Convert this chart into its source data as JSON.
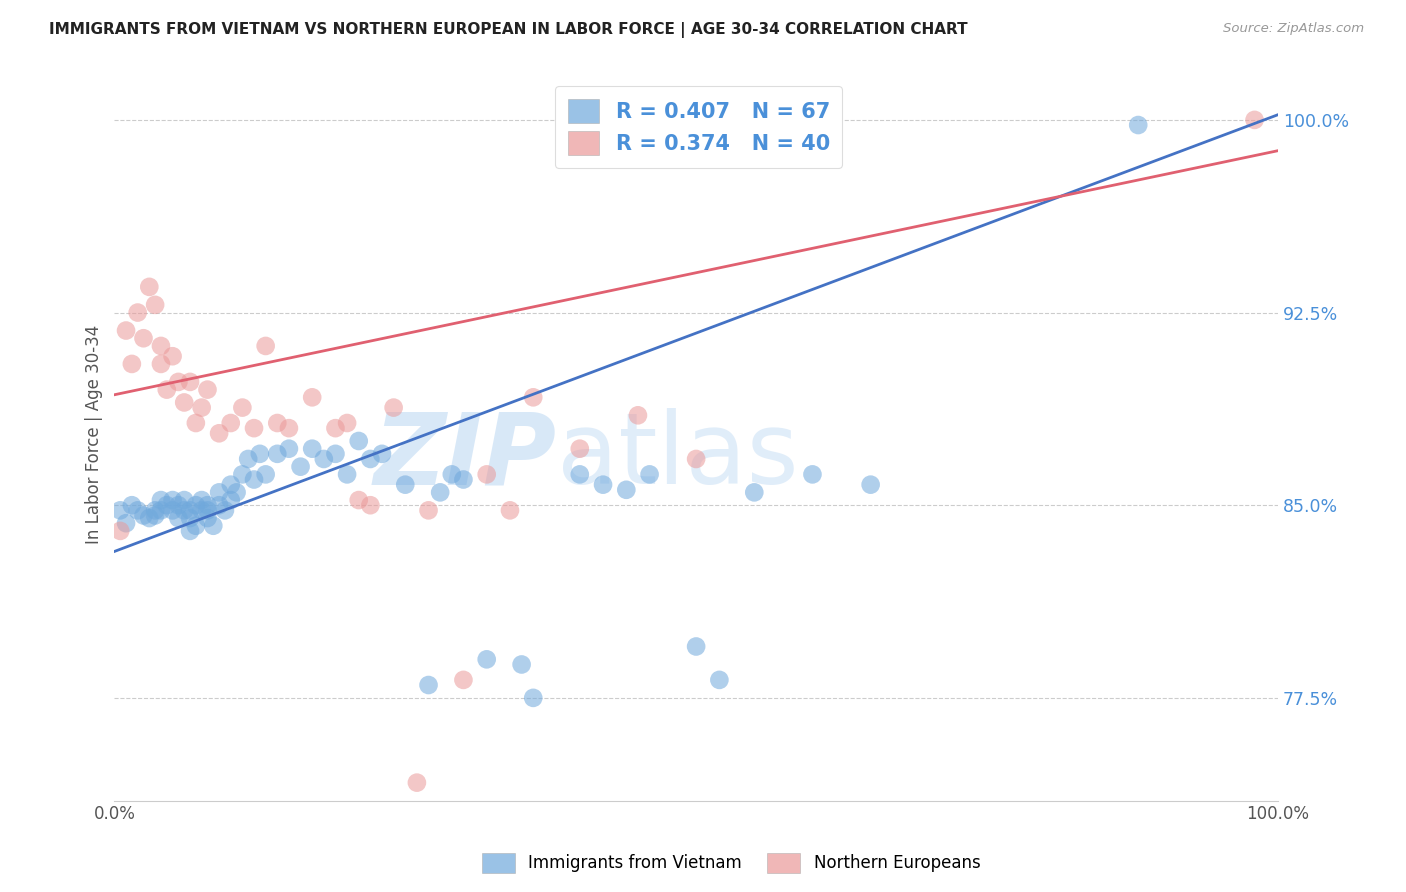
{
  "title": "IMMIGRANTS FROM VIETNAM VS NORTHERN EUROPEAN IN LABOR FORCE | AGE 30-34 CORRELATION CHART",
  "source": "Source: ZipAtlas.com",
  "ylabel": "In Labor Force | Age 30-34",
  "xlim": [
    0.0,
    1.0
  ],
  "ylim": [
    0.735,
    1.02
  ],
  "yticks": [
    0.775,
    0.85,
    0.925,
    1.0
  ],
  "ytick_labels": [
    "77.5%",
    "85.0%",
    "92.5%",
    "100.0%"
  ],
  "xtick_positions": [
    0.0,
    0.2,
    0.4,
    0.6,
    0.8,
    1.0
  ],
  "xtick_labels": [
    "0.0%",
    "",
    "",
    "",
    "",
    "100.0%"
  ],
  "blue_color": "#6fa8dc",
  "pink_color": "#ea9999",
  "blue_line_color": "#4472c4",
  "pink_line_color": "#e06070",
  "legend_R_blue": "0.407",
  "legend_N_blue": "67",
  "legend_R_pink": "0.374",
  "legend_N_pink": "40",
  "blue_scatter_x": [
    0.005,
    0.01,
    0.015,
    0.02,
    0.025,
    0.03,
    0.035,
    0.035,
    0.04,
    0.04,
    0.045,
    0.05,
    0.05,
    0.055,
    0.055,
    0.06,
    0.06,
    0.065,
    0.065,
    0.065,
    0.07,
    0.07,
    0.075,
    0.075,
    0.08,
    0.08,
    0.08,
    0.085,
    0.09,
    0.09,
    0.095,
    0.1,
    0.1,
    0.105,
    0.11,
    0.115,
    0.12,
    0.125,
    0.13,
    0.14,
    0.15,
    0.16,
    0.17,
    0.18,
    0.19,
    0.2,
    0.21,
    0.22,
    0.23,
    0.25,
    0.27,
    0.28,
    0.29,
    0.3,
    0.32,
    0.35,
    0.36,
    0.4,
    0.42,
    0.44,
    0.46,
    0.5,
    0.52,
    0.55,
    0.6,
    0.65,
    0.88
  ],
  "blue_scatter_y": [
    0.848,
    0.843,
    0.85,
    0.848,
    0.846,
    0.845,
    0.846,
    0.848,
    0.848,
    0.852,
    0.85,
    0.848,
    0.852,
    0.85,
    0.845,
    0.848,
    0.852,
    0.848,
    0.845,
    0.84,
    0.85,
    0.842,
    0.848,
    0.852,
    0.85,
    0.845,
    0.848,
    0.842,
    0.85,
    0.855,
    0.848,
    0.852,
    0.858,
    0.855,
    0.862,
    0.868,
    0.86,
    0.87,
    0.862,
    0.87,
    0.872,
    0.865,
    0.872,
    0.868,
    0.87,
    0.862,
    0.875,
    0.868,
    0.87,
    0.858,
    0.78,
    0.855,
    0.862,
    0.86,
    0.79,
    0.788,
    0.775,
    0.862,
    0.858,
    0.856,
    0.862,
    0.795,
    0.782,
    0.855,
    0.862,
    0.858,
    0.998
  ],
  "pink_scatter_x": [
    0.005,
    0.01,
    0.015,
    0.02,
    0.025,
    0.03,
    0.035,
    0.04,
    0.04,
    0.045,
    0.05,
    0.055,
    0.06,
    0.065,
    0.07,
    0.075,
    0.08,
    0.09,
    0.1,
    0.11,
    0.12,
    0.13,
    0.14,
    0.15,
    0.17,
    0.19,
    0.21,
    0.24,
    0.27,
    0.3,
    0.32,
    0.34,
    0.36,
    0.4,
    0.45,
    0.5,
    0.2,
    0.22,
    0.26,
    0.98
  ],
  "pink_scatter_y": [
    0.84,
    0.918,
    0.905,
    0.925,
    0.915,
    0.935,
    0.928,
    0.912,
    0.905,
    0.895,
    0.908,
    0.898,
    0.89,
    0.898,
    0.882,
    0.888,
    0.895,
    0.878,
    0.882,
    0.888,
    0.88,
    0.912,
    0.882,
    0.88,
    0.892,
    0.88,
    0.852,
    0.888,
    0.848,
    0.782,
    0.862,
    0.848,
    0.892,
    0.872,
    0.885,
    0.868,
    0.882,
    0.85,
    0.742,
    1.0
  ],
  "blue_line_x0": 0.0,
  "blue_line_x1": 1.0,
  "blue_line_y0": 0.832,
  "blue_line_y1": 1.002,
  "pink_line_x0": 0.0,
  "pink_line_x1": 1.0,
  "pink_line_y0": 0.893,
  "pink_line_y1": 0.988
}
